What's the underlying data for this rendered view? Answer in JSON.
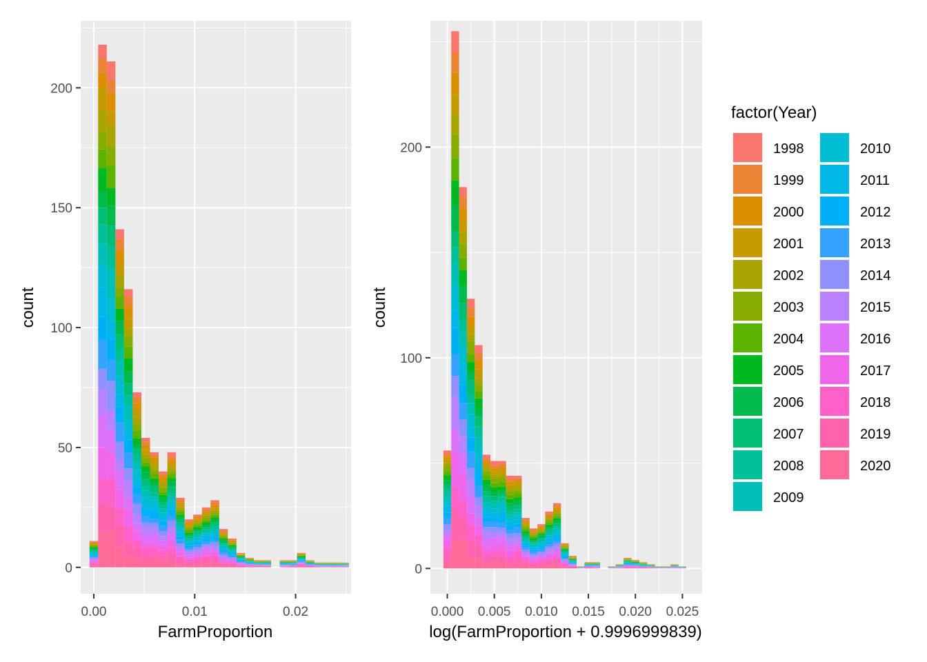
{
  "legend": {
    "title": "factor(Year)",
    "years": [
      "1998",
      "1999",
      "2000",
      "2001",
      "2002",
      "2003",
      "2004",
      "2005",
      "2006",
      "2007",
      "2008",
      "2009",
      "2010",
      "2011",
      "2012",
      "2013",
      "2014",
      "2015",
      "2016",
      "2017",
      "2018",
      "2019",
      "2020"
    ],
    "colors": [
      "#F8766D",
      "#EB8335",
      "#DA8F00",
      "#C49A00",
      "#A9A400",
      "#87AC00",
      "#5BB300",
      "#00B81F",
      "#00BB4B",
      "#00BF74",
      "#00C098",
      "#00BFB6",
      "#00BDD1",
      "#00B8E7",
      "#00B0F6",
      "#35A2FF",
      "#8F91FF",
      "#B983FF",
      "#DD71FA",
      "#F066EA",
      "#FF61C9",
      "#FF63AE",
      "#FF6A98"
    ]
  },
  "chart_data": [
    {
      "type": "bar",
      "subtype": "stacked-histogram",
      "xlabel": "FarmProportion",
      "ylabel": "count",
      "xlim": [
        -0.0013,
        0.0255
      ],
      "ylim": [
        -11,
        228
      ],
      "xticks": [
        0.0,
        0.01,
        0.02
      ],
      "xtick_labels": [
        "0.00",
        "0.01",
        "0.02"
      ],
      "yticks": [
        0,
        50,
        100,
        150,
        200
      ],
      "binwidth": 0.000857,
      "bin_centers": [
        0.0,
        0.000857,
        0.001714,
        0.002571,
        0.003429,
        0.004286,
        0.005143,
        0.006,
        0.006857,
        0.007714,
        0.008571,
        0.009429,
        0.010286,
        0.011143,
        0.012,
        0.012857,
        0.013714,
        0.014571,
        0.015429,
        0.016286,
        0.017143,
        0.018,
        0.018857,
        0.019714,
        0.020571,
        0.021429,
        0.022286,
        0.023143,
        0.024,
        0.024857
      ],
      "totals": [
        11,
        218,
        211,
        141,
        116,
        73,
        54,
        48,
        40,
        48,
        29,
        20,
        22,
        25,
        28,
        16,
        12,
        6,
        4,
        3,
        3,
        0,
        3,
        3,
        6,
        3,
        2,
        2,
        2,
        2
      ],
      "grid": true,
      "legend_position": "right"
    },
    {
      "type": "bar",
      "subtype": "stacked-histogram",
      "xlabel": "log(FarmProportion + 0.9996999839)",
      "ylabel": "count",
      "xlim": [
        -0.0018,
        0.0271
      ],
      "ylim": [
        -12,
        260
      ],
      "xticks": [
        0.0,
        0.005,
        0.01,
        0.015,
        0.02,
        0.025
      ],
      "xtick_labels": [
        "0.000",
        "0.005",
        "0.010",
        "0.015",
        "0.020",
        "0.025"
      ],
      "yticks": [
        0,
        100,
        200
      ],
      "binwidth": 0.000833,
      "bin_centers": [
        0.0,
        0.000833,
        0.001667,
        0.0025,
        0.003333,
        0.004167,
        0.005,
        0.005833,
        0.006667,
        0.0075,
        0.008333,
        0.009167,
        0.01,
        0.010833,
        0.011667,
        0.0125,
        0.013333,
        0.014167,
        0.015,
        0.015833,
        0.016667,
        0.0175,
        0.018333,
        0.019167,
        0.02,
        0.020833,
        0.021667,
        0.0225,
        0.023333,
        0.024167,
        0.025
      ],
      "totals": [
        56,
        255,
        181,
        128,
        106,
        54,
        51,
        51,
        44,
        44,
        24,
        19,
        21,
        27,
        31,
        12,
        6,
        1,
        3,
        3,
        0,
        1,
        2,
        5,
        4,
        3,
        2,
        1,
        1,
        2,
        1
      ],
      "grid": true,
      "legend_position": "right"
    }
  ]
}
